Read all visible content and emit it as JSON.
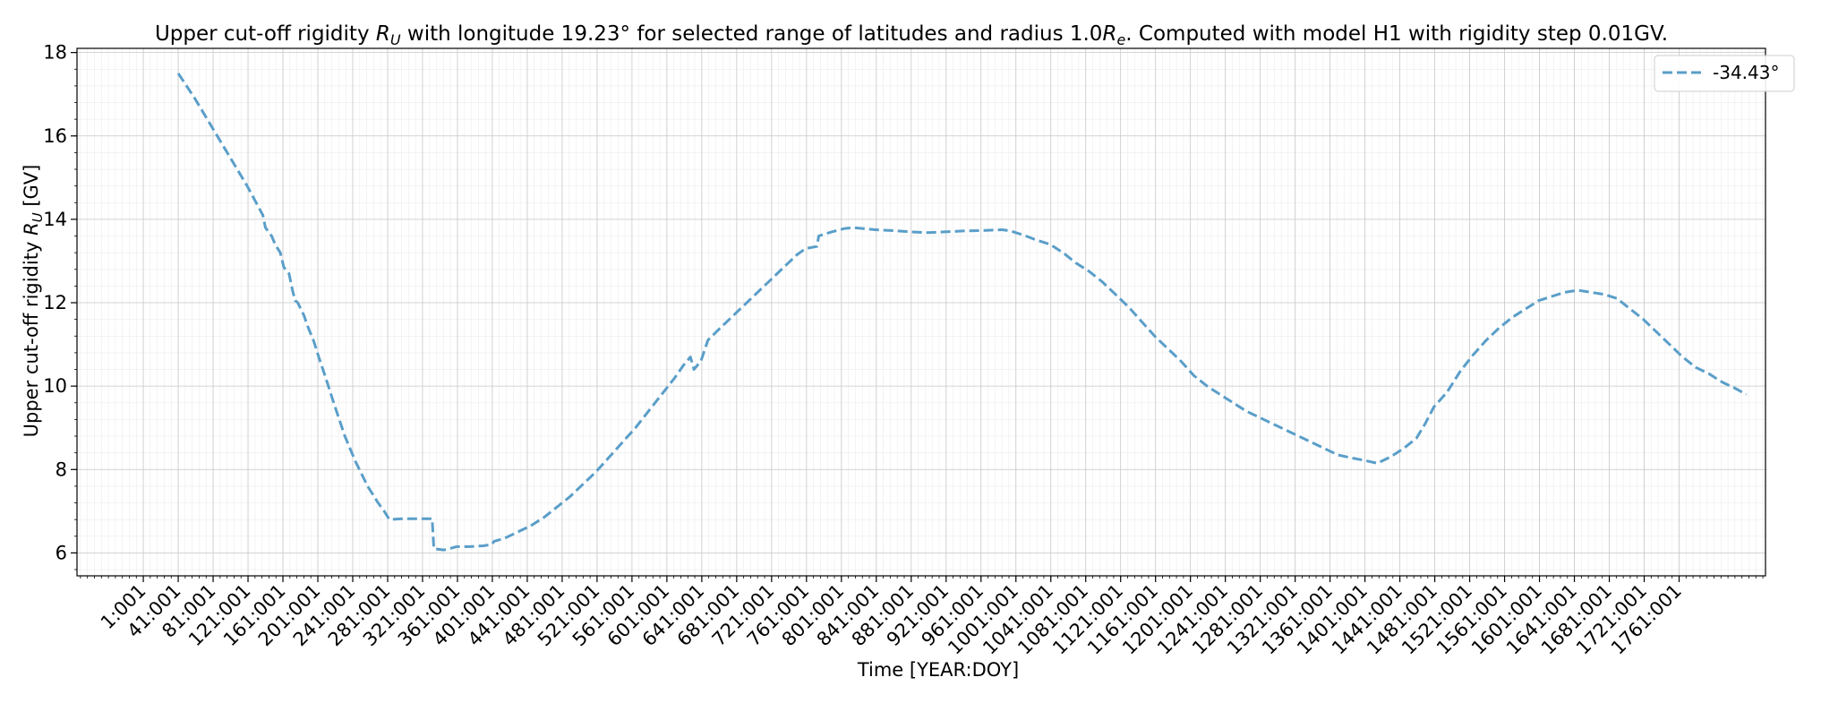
{
  "chart_data": {
    "type": "line",
    "title": "Upper cut-off rigidity R_U with longitude 19.23° for selected range of latitudes and radius 1.0R_e. Computed with model H1 with rigidity step 0.01GV.",
    "title_parts": {
      "t1": "Upper cut-off rigidity ",
      "r_sym": "R",
      "r_sub": "U",
      "t2": " with longitude 19.23° for selected range of latitudes and radius 1.0",
      "re_sym": "R",
      "re_sub": "e",
      "t3": ". Computed with model H1 with rigidity step 0.01GV."
    },
    "xlabel": "Time [YEAR:DOY]",
    "ylabel": "Upper cut-off rigidity R_U [GV]",
    "ylabel_parts": {
      "t1": "Upper cut-off rigidity ",
      "r_sym": "R",
      "r_sub": "U",
      "t2": " [GV]"
    },
    "xlim": [
      -75,
      1860
    ],
    "ylim": [
      5.45,
      18.1
    ],
    "x_ticks": [
      1,
      41,
      81,
      121,
      161,
      201,
      241,
      281,
      321,
      361,
      401,
      441,
      481,
      521,
      561,
      601,
      641,
      681,
      721,
      761,
      801,
      841,
      881,
      921,
      961,
      1001,
      1041,
      1081,
      1121,
      1161,
      1201,
      1241,
      1281,
      1321,
      1361,
      1401,
      1441,
      1481,
      1521,
      1561,
      1601,
      1641,
      1681,
      1721,
      1761
    ],
    "x_tick_labels": [
      "1:001",
      "41:001",
      "81:001",
      "121:001",
      "161:001",
      "201:001",
      "241:001",
      "281:001",
      "321:001",
      "361:001",
      "401:001",
      "441:001",
      "481:001",
      "521:001",
      "561:001",
      "601:001",
      "641:001",
      "681:001",
      "721:001",
      "761:001",
      "801:001",
      "841:001",
      "881:001",
      "921:001",
      "961:001",
      "1001:001",
      "1041:001",
      "1081:001",
      "1121:001",
      "1161:001",
      "1201:001",
      "1241:001",
      "1281:001",
      "1321:001",
      "1361:001",
      "1401:001",
      "1441:001",
      "1481:001",
      "1521:001",
      "1561:001",
      "1601:001",
      "1641:001",
      "1681:001",
      "1721:001",
      "1761:001"
    ],
    "y_ticks": [
      6,
      8,
      10,
      12,
      14,
      16,
      18
    ],
    "y_tick_labels": [
      "6",
      "8",
      "10",
      "12",
      "14",
      "16",
      "18"
    ],
    "grid": true,
    "legend_position": "top-right",
    "series": [
      {
        "name": "-34.43°",
        "color": "#5a9ec9",
        "style": "dashed",
        "points": [
          [
            41,
            17.5
          ],
          [
            60,
            16.9
          ],
          [
            80,
            16.2
          ],
          [
            100,
            15.5
          ],
          [
            120,
            14.8
          ],
          [
            138,
            14.1
          ],
          [
            141,
            13.8
          ],
          [
            148,
            13.6
          ],
          [
            152,
            13.4
          ],
          [
            158,
            13.2
          ],
          [
            162,
            12.85
          ],
          [
            168,
            12.7
          ],
          [
            172,
            12.3
          ],
          [
            175,
            12.05
          ],
          [
            178,
            12.0
          ],
          [
            185,
            11.7
          ],
          [
            190,
            11.4
          ],
          [
            196,
            11.1
          ],
          [
            202,
            10.7
          ],
          [
            210,
            10.2
          ],
          [
            220,
            9.55
          ],
          [
            232,
            8.8
          ],
          [
            244,
            8.2
          ],
          [
            258,
            7.6
          ],
          [
            270,
            7.2
          ],
          [
            277,
            7.0
          ],
          [
            283,
            6.8
          ],
          [
            300,
            6.82
          ],
          [
            318,
            6.82
          ],
          [
            332,
            6.82
          ],
          [
            334,
            6.1
          ],
          [
            345,
            6.07
          ],
          [
            352,
            6.1
          ],
          [
            360,
            6.15
          ],
          [
            375,
            6.15
          ],
          [
            390,
            6.17
          ],
          [
            400,
            6.2
          ],
          [
            403,
            6.28
          ],
          [
            415,
            6.35
          ],
          [
            430,
            6.5
          ],
          [
            445,
            6.65
          ],
          [
            460,
            6.85
          ],
          [
            475,
            7.1
          ],
          [
            490,
            7.35
          ],
          [
            505,
            7.65
          ],
          [
            520,
            7.95
          ],
          [
            535,
            8.3
          ],
          [
            550,
            8.65
          ],
          [
            565,
            9.0
          ],
          [
            580,
            9.4
          ],
          [
            595,
            9.8
          ],
          [
            610,
            10.2
          ],
          [
            620,
            10.5
          ],
          [
            628,
            10.7
          ],
          [
            632,
            10.4
          ],
          [
            640,
            10.6
          ],
          [
            648,
            11.1
          ],
          [
            660,
            11.35
          ],
          [
            675,
            11.65
          ],
          [
            690,
            11.95
          ],
          [
            705,
            12.25
          ],
          [
            720,
            12.55
          ],
          [
            735,
            12.85
          ],
          [
            750,
            13.15
          ],
          [
            760,
            13.3
          ],
          [
            773,
            13.35
          ],
          [
            775,
            13.6
          ],
          [
            790,
            13.7
          ],
          [
            805,
            13.78
          ],
          [
            815,
            13.8
          ],
          [
            840,
            13.75
          ],
          [
            860,
            13.73
          ],
          [
            880,
            13.7
          ],
          [
            900,
            13.68
          ],
          [
            920,
            13.7
          ],
          [
            940,
            13.72
          ],
          [
            960,
            13.73
          ],
          [
            985,
            13.75
          ],
          [
            995,
            13.72
          ],
          [
            1010,
            13.62
          ],
          [
            1025,
            13.5
          ],
          [
            1040,
            13.4
          ],
          [
            1055,
            13.2
          ],
          [
            1070,
            12.95
          ],
          [
            1085,
            12.75
          ],
          [
            1100,
            12.5
          ],
          [
            1115,
            12.2
          ],
          [
            1130,
            11.9
          ],
          [
            1145,
            11.55
          ],
          [
            1160,
            11.2
          ],
          [
            1175,
            10.9
          ],
          [
            1190,
            10.6
          ],
          [
            1205,
            10.25
          ],
          [
            1220,
            10.0
          ],
          [
            1235,
            9.8
          ],
          [
            1250,
            9.6
          ],
          [
            1265,
            9.4
          ],
          [
            1280,
            9.25
          ],
          [
            1295,
            9.1
          ],
          [
            1310,
            8.95
          ],
          [
            1325,
            8.8
          ],
          [
            1340,
            8.65
          ],
          [
            1355,
            8.5
          ],
          [
            1370,
            8.35
          ],
          [
            1385,
            8.28
          ],
          [
            1400,
            8.22
          ],
          [
            1415,
            8.15
          ],
          [
            1430,
            8.3
          ],
          [
            1445,
            8.5
          ],
          [
            1460,
            8.75
          ],
          [
            1470,
            9.1
          ],
          [
            1480,
            9.5
          ],
          [
            1495,
            9.85
          ],
          [
            1510,
            10.35
          ],
          [
            1525,
            10.75
          ],
          [
            1540,
            11.1
          ],
          [
            1555,
            11.4
          ],
          [
            1570,
            11.65
          ],
          [
            1585,
            11.85
          ],
          [
            1600,
            12.05
          ],
          [
            1615,
            12.15
          ],
          [
            1630,
            12.25
          ],
          [
            1645,
            12.3
          ],
          [
            1660,
            12.25
          ],
          [
            1675,
            12.2
          ],
          [
            1690,
            12.1
          ],
          [
            1705,
            11.85
          ],
          [
            1720,
            11.6
          ],
          [
            1735,
            11.3
          ],
          [
            1750,
            11.0
          ],
          [
            1765,
            10.7
          ],
          [
            1780,
            10.45
          ],
          [
            1795,
            10.3
          ],
          [
            1810,
            10.1
          ],
          [
            1825,
            9.95
          ],
          [
            1838,
            9.8
          ]
        ]
      }
    ]
  }
}
